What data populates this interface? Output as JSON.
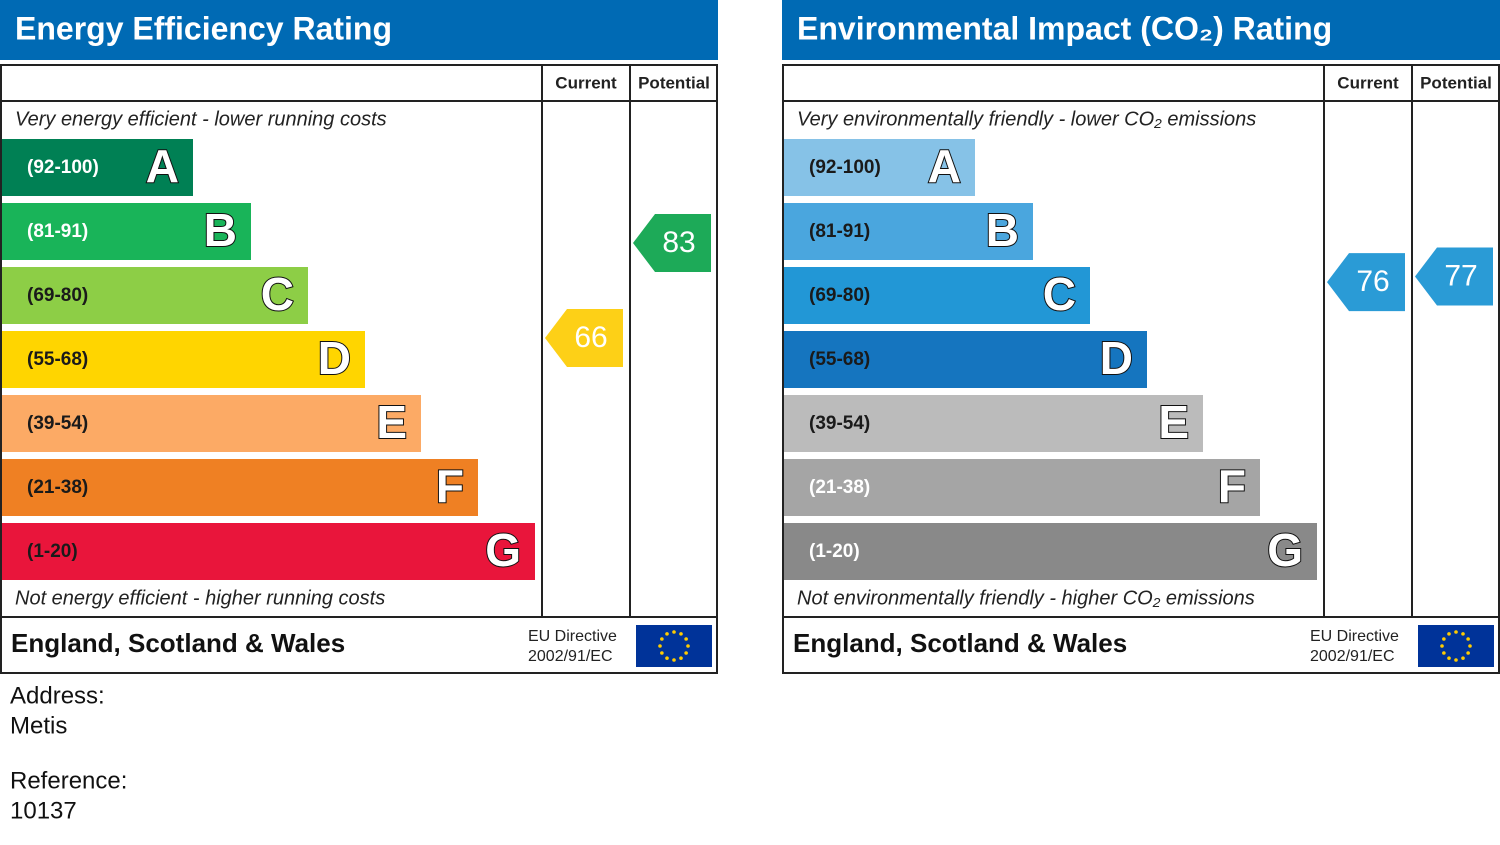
{
  "panels": [
    {
      "title": "Energy Efficiency Rating",
      "headers": [
        "Current",
        "Potential"
      ],
      "top_note": "Very energy efficient - lower running costs",
      "bottom_note": "Not energy efficient - higher running costs",
      "bands": [
        {
          "range": "(92-100)",
          "letter": "A",
          "color": "#008054",
          "text_color": "#ffffff"
        },
        {
          "range": "(81-91)",
          "letter": "B",
          "color": "#19b459",
          "text_color": "#ffffff"
        },
        {
          "range": "(69-80)",
          "letter": "C",
          "color": "#8dce46",
          "text_color": "#1a1a1a"
        },
        {
          "range": "(55-68)",
          "letter": "D",
          "color": "#ffd500",
          "text_color": "#1a1a1a"
        },
        {
          "range": "(39-54)",
          "letter": "E",
          "color": "#fcaa65",
          "text_color": "#1a1a1a"
        },
        {
          "range": "(21-38)",
          "letter": "F",
          "color": "#ef8023",
          "text_color": "#1a1a1a"
        },
        {
          "range": "(1-20)",
          "letter": "G",
          "color": "#e9153b",
          "text_color": "#1a1a1a"
        }
      ],
      "current": {
        "value": 66,
        "color": "#fdd017"
      },
      "potential": {
        "value": 83,
        "color": "#1daa58"
      },
      "footer": {
        "region": "England, Scotland & Wales",
        "directive": [
          "EU Directive",
          "2002/91/EC"
        ]
      }
    },
    {
      "title": "Environmental Impact (CO₂) Rating",
      "headers": [
        "Current",
        "Potential"
      ],
      "top_note": "Very environmentally friendly - lower CO₂ emissions",
      "bottom_note": "Not environmentally friendly - higher CO₂ emissions",
      "bands": [
        {
          "range": "(92-100)",
          "letter": "A",
          "color": "#86c2e7",
          "text_color": "#1a1a1a"
        },
        {
          "range": "(81-91)",
          "letter": "B",
          "color": "#4aa6de",
          "text_color": "#1a1a1a"
        },
        {
          "range": "(69-80)",
          "letter": "C",
          "color": "#2297d6",
          "text_color": "#1a1a1a"
        },
        {
          "range": "(55-68)",
          "letter": "D",
          "color": "#1575bf",
          "text_color": "#1a1a1a"
        },
        {
          "range": "(39-54)",
          "letter": "E",
          "color": "#bbbbbb",
          "text_color": "#1a1a1a"
        },
        {
          "range": "(21-38)",
          "letter": "F",
          "color": "#a5a5a5",
          "text_color": "#ffffff"
        },
        {
          "range": "(1-20)",
          "letter": "G",
          "color": "#898989",
          "text_color": "#ffffff"
        }
      ],
      "current": {
        "value": 76,
        "color": "#2a9bd6"
      },
      "potential": {
        "value": 77,
        "color": "#2a9bd6"
      },
      "footer": {
        "region": "England, Scotland & Wales",
        "directive": [
          "EU Directive",
          "2002/91/EC"
        ]
      }
    }
  ],
  "address": {
    "label": "Address:",
    "value": "Metis"
  },
  "reference": {
    "label": "Reference:",
    "value": "10137"
  }
}
